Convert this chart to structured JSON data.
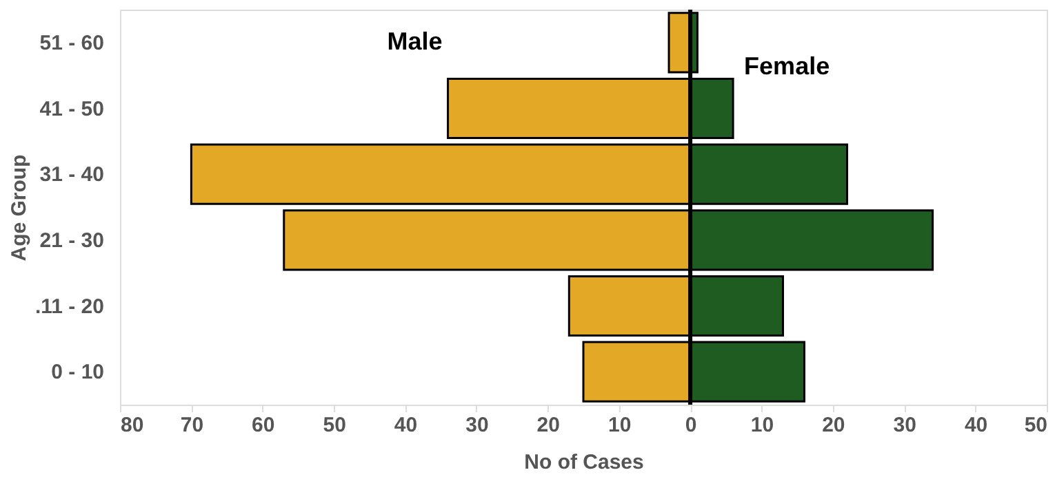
{
  "chart_data": {
    "type": "bar",
    "orientation": "horizontal",
    "xlabel": "No of Cases",
    "ylabel": "Age Group",
    "categories": [
      "51 - 60",
      "41 - 50",
      "31 - 40",
      "21 - 30",
      ".11 - 20",
      "0 - 10"
    ],
    "series": [
      {
        "name": "Male",
        "color": "#e3a926",
        "values": [
          -3,
          -34,
          -70,
          -57,
          -17,
          -15
        ]
      },
      {
        "name": "Female",
        "color": "#1e5c22",
        "values": [
          1,
          6,
          22,
          34,
          13,
          16
        ]
      }
    ],
    "xlim": [
      -80,
      50
    ],
    "xticks": [
      {
        "value": -80,
        "label": "80"
      },
      {
        "value": -70,
        "label": "70"
      },
      {
        "value": -60,
        "label": "60"
      },
      {
        "value": -50,
        "label": "50"
      },
      {
        "value": -40,
        "label": "40"
      },
      {
        "value": -30,
        "label": "30"
      },
      {
        "value": -20,
        "label": "20"
      },
      {
        "value": -10,
        "label": "10"
      },
      0,
      10,
      20,
      30,
      40,
      50
    ],
    "ref_lines": [
      {
        "axis": "x",
        "value": 0,
        "color": "#000000"
      }
    ],
    "stacked": true,
    "grid": false
  }
}
